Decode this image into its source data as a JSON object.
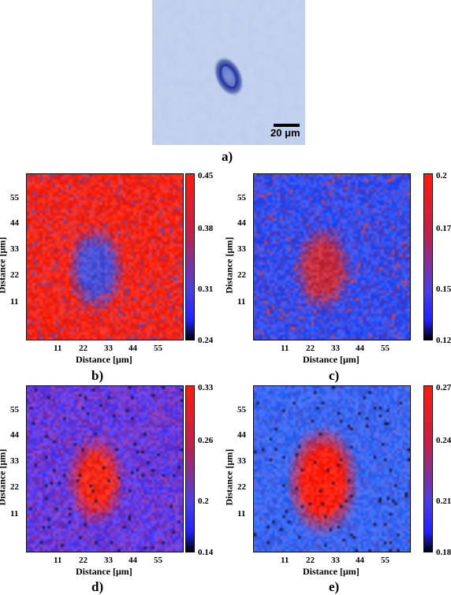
{
  "figure": {
    "panel_a": {
      "label": "a)",
      "scale_bar": "20 μm"
    },
    "panels": [
      {
        "id": "b",
        "label": "b)",
        "xlabel": "Distance [μm]",
        "ylabel": "Distance [μm]",
        "xticks": [
          "11",
          "22",
          "33",
          "44",
          "55"
        ],
        "yticks": [
          "55",
          "44",
          "33",
          "22",
          "11"
        ],
        "colorbar_ticks": [
          "0.45",
          "0.38",
          "0.31",
          "0.24"
        ],
        "background_color": "#f2281e",
        "feature_color": "#4050e0"
      },
      {
        "id": "c",
        "label": "c)",
        "xlabel": "Distance [μm]",
        "ylabel": "Distance [μm]",
        "xticks": [
          "11",
          "22",
          "33",
          "44",
          "55"
        ],
        "yticks": [
          "55",
          "44",
          "33",
          "22",
          "11"
        ],
        "colorbar_ticks": [
          "0.2",
          "0.17",
          "0.15",
          "0.12"
        ],
        "background_color": "#3a4ce8",
        "feature_color": "#c83040"
      },
      {
        "id": "d",
        "label": "d)",
        "xlabel": "Distance [μm]",
        "ylabel": "Distance [μm]",
        "xticks": [
          "11",
          "22",
          "33",
          "44",
          "55"
        ],
        "yticks": [
          "55",
          "44",
          "33",
          "22",
          "11"
        ],
        "colorbar_ticks": [
          "0.33",
          "0.26",
          "0.2",
          "0.14"
        ],
        "background_color": "#6a3ad8",
        "feature_color": "#f52a1a"
      },
      {
        "id": "e",
        "label": "e)",
        "xlabel": "Distance [μm]",
        "ylabel": "Distance [μm]",
        "xticks": [
          "11",
          "22",
          "33",
          "44",
          "55"
        ],
        "yticks": [
          "55",
          "44",
          "33",
          "22",
          "11"
        ],
        "colorbar_ticks": [
          "0.27",
          "0.24",
          "0.21",
          "0.18"
        ],
        "background_color": "#3d66f0",
        "feature_color": "#ff2010"
      }
    ]
  }
}
